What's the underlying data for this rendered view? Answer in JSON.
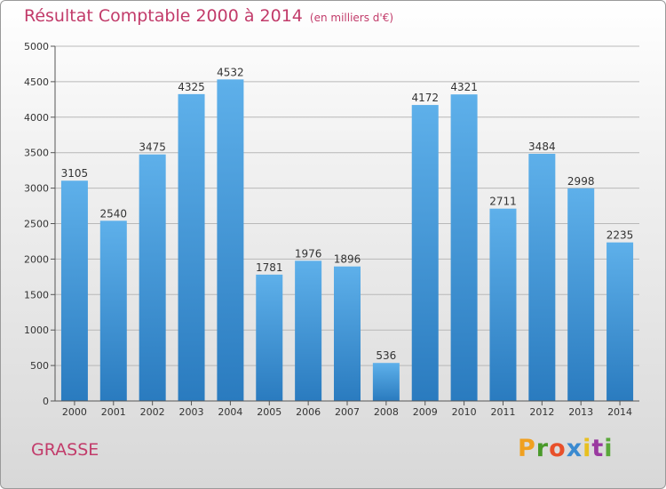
{
  "header": {
    "title": "Résultat Comptable 2000 à 2014",
    "subtitle": "(en milliers d'€)"
  },
  "footer": {
    "city": "GRASSE",
    "logo": "Proxiti"
  },
  "colors": {
    "title": "#c23b6a",
    "bar_top": "#5eb0ea",
    "bar_bottom": "#2a7bbf",
    "logo_letters": [
      "#f0a020",
      "#4a9a2a",
      "#e8502a",
      "#3a8ad0",
      "#e8c020",
      "#9a3aa0",
      "#5aa83a"
    ]
  },
  "chart_data": {
    "type": "bar",
    "title": "Résultat Comptable 2000 à 2014",
    "subtitle": "(en milliers d'€)",
    "categories": [
      "2000",
      "2001",
      "2002",
      "2003",
      "2004",
      "2005",
      "2006",
      "2007",
      "2008",
      "2009",
      "2010",
      "2011",
      "2012",
      "2013",
      "2014"
    ],
    "values": [
      3105,
      2540,
      3475,
      4325,
      4532,
      1781,
      1976,
      1896,
      536,
      4172,
      4321,
      2711,
      3484,
      2998,
      2235
    ],
    "ylim": [
      0,
      5000
    ],
    "yticks": [
      0,
      500,
      1000,
      1500,
      2000,
      2500,
      3000,
      3500,
      4000,
      4500,
      5000
    ],
    "grid": true,
    "legend": "none"
  }
}
